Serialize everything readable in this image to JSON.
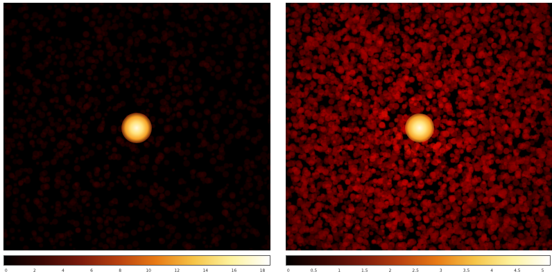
{
  "images": [
    {
      "id": "left",
      "colormap": "heat",
      "background_color": "#0a0201",
      "source_color": "#fff2a0",
      "noise_level": 0.15,
      "colorbar_ticks": [
        "0",
        "2",
        "4",
        "6",
        "8",
        "10",
        "12",
        "14",
        "16",
        "18"
      ]
    },
    {
      "id": "right",
      "colormap": "heat",
      "background_color": "#140302",
      "source_color": "#fff2a0",
      "noise_level": 0.65,
      "colorbar_ticks": [
        "0",
        "0.5",
        "1",
        "1.5",
        "2",
        "2.5",
        "3",
        "3.5",
        "4",
        "4.5",
        "5"
      ]
    }
  ],
  "colors": {
    "heat_stops": [
      "#000000",
      "#3a0804",
      "#7a1a0c",
      "#b8400f",
      "#e87a14",
      "#f6c447",
      "#fdf3a0",
      "#ffffff"
    ]
  }
}
